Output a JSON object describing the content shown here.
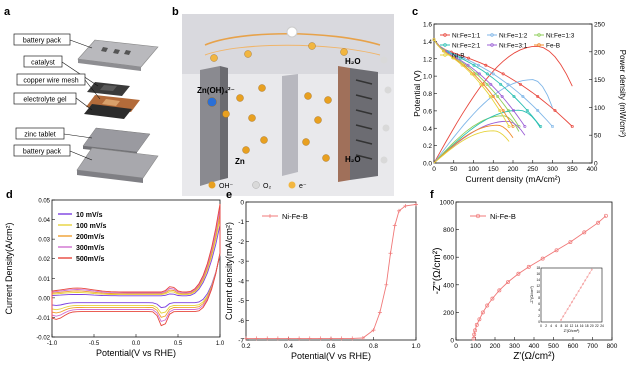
{
  "panel_letters": {
    "a": "a",
    "b": "b",
    "c": "c",
    "d": "d",
    "e": "e",
    "f": "f"
  },
  "panel_a": {
    "labels": [
      "battery pack",
      "catalyst",
      "copper wire mesh",
      "electrolyte gel",
      "zinc tablet",
      "battery pack"
    ]
  },
  "panel_b": {
    "labels": {
      "zinc_species": "Zn(OH)₄²⁻",
      "zn": "Zn",
      "h2o_top": "H₂O",
      "h2o_bottom": "H₂O"
    },
    "legend": [
      "OH⁻",
      "O₂",
      "e⁻"
    ],
    "colors": {
      "oh": "#e8a020",
      "o2": "#d9d9d9",
      "electron": "#f2b640",
      "zn_ion": "#2a6fd6"
    }
  },
  "chart_data": [
    {
      "panel": "c",
      "type": "line",
      "xlabel": "Current density (mA/cm²)",
      "ylabel": "Potential (V)",
      "y2label": "Power density (mW/cm²)",
      "xlim": [
        0,
        400
      ],
      "ylim": [
        0,
        1.6
      ],
      "y2lim": [
        0,
        250
      ],
      "xticks": [
        "0",
        "50",
        "100",
        "150",
        "200",
        "250",
        "300",
        "350",
        "400"
      ],
      "yticks": [
        "0.0",
        "0.2",
        "0.4",
        "0.6",
        "0.8",
        "1.0",
        "1.2",
        "1.4",
        "1.6"
      ],
      "y2ticks": [
        "0",
        "50",
        "100",
        "150",
        "200",
        "250"
      ],
      "series": [
        {
          "name": "Ni:Fe=1:1",
          "color": "#e8473d",
          "x_max": 350,
          "p_max": 210,
          "p_at": 260
        },
        {
          "name": "Ni:Fe=1:2",
          "color": "#7fb6e8",
          "x_max": 300,
          "p_max": 150,
          "p_at": 250
        },
        {
          "name": "Ni:Fe=1:3",
          "color": "#8fce5a",
          "x_max": 215,
          "p_max": 85,
          "p_at": 175
        },
        {
          "name": "Ni:Fe=2:1",
          "color": "#2bbfb3",
          "x_max": 270,
          "p_max": 95,
          "p_at": 215
        },
        {
          "name": "Ni:Fe=3:1",
          "color": "#9b5fd6",
          "x_max": 230,
          "p_max": 75,
          "p_at": 185
        },
        {
          "name": "Fe-B",
          "color": "#f08a2a",
          "x_max": 200,
          "p_max": 68,
          "p_at": 160
        },
        {
          "name": "Ni-B",
          "color": "#e6d33a",
          "x_max": 190,
          "p_max": 58,
          "p_at": 150
        }
      ]
    },
    {
      "panel": "d",
      "type": "line",
      "xlabel": "Potential(V vs RHE)",
      "ylabel": "Current Density(A/cm²)",
      "xlim": [
        -1.0,
        1.0
      ],
      "ylim": [
        -0.02,
        0.05
      ],
      "xticks": [
        "-1.0",
        "-0.5",
        "0.0",
        "0.5",
        "1.0"
      ],
      "yticks": [
        "-0.02",
        "-0.01",
        "0.00",
        "0.01",
        "0.02",
        "0.03",
        "0.04",
        "0.05"
      ],
      "series": [
        {
          "name": "10 mV/s",
          "color": "#7b3fe0",
          "scale": 0.35
        },
        {
          "name": "100 mV/s",
          "color": "#e6d33a",
          "scale": 0.55
        },
        {
          "name": "200mV/s",
          "color": "#f0a030",
          "scale": 0.7
        },
        {
          "name": "300mV/s",
          "color": "#d070d0",
          "scale": 0.85
        },
        {
          "name": "500mV/s",
          "color": "#e8473d",
          "scale": 1.0
        }
      ]
    },
    {
      "panel": "e",
      "type": "line",
      "xlabel": "Potential(V vs RHE)",
      "ylabel": "Current density(mA/cm²)",
      "xlim": [
        0.2,
        1.0
      ],
      "ylim": [
        -7,
        0
      ],
      "xticks": [
        "0.2",
        "0.4",
        "0.6",
        "0.8",
        "1.0"
      ],
      "yticks": [
        "-7",
        "-6",
        "-5",
        "-4",
        "-3",
        "-2",
        "-1",
        "0"
      ],
      "series": [
        {
          "name": "Ni-Fe-B",
          "color": "#f07878",
          "x": [
            0.2,
            0.25,
            0.3,
            0.35,
            0.4,
            0.45,
            0.5,
            0.55,
            0.6,
            0.65,
            0.7,
            0.75,
            0.8,
            0.83,
            0.86,
            0.88,
            0.9,
            0.92,
            0.95,
            1.0
          ],
          "y": [
            -6.92,
            -6.92,
            -6.92,
            -6.92,
            -6.92,
            -6.92,
            -6.92,
            -6.92,
            -6.92,
            -6.92,
            -6.92,
            -6.9,
            -6.5,
            -5.6,
            -4.2,
            -2.6,
            -1.2,
            -0.45,
            -0.2,
            -0.12
          ]
        }
      ]
    },
    {
      "panel": "f",
      "type": "scatter",
      "xlabel": "Z'(Ω/cm²)",
      "ylabel": "-Z''(Ω/cm²)",
      "xlim": [
        -100,
        800
      ],
      "ylim": [
        0,
        1000
      ],
      "xticks": [
        "0",
        "100",
        "200",
        "300",
        "400",
        "500",
        "600",
        "700",
        "800"
      ],
      "yticks": [
        "0",
        "200",
        "400",
        "600",
        "800",
        "1000"
      ],
      "series": [
        {
          "name": "Ni-Fe-B",
          "color": "#f07878",
          "x": [
            2,
            5,
            10,
            20,
            35,
            55,
            80,
            110,
            150,
            200,
            260,
            320,
            400,
            480,
            560,
            640,
            720,
            765
          ],
          "y": [
            10,
            40,
            70,
            110,
            150,
            200,
            250,
            300,
            360,
            420,
            480,
            530,
            590,
            650,
            710,
            780,
            850,
            900
          ]
        }
      ],
      "inset": {
        "xlabel": "Z'(Ω/cm²)",
        "ylabel": "-Z''(Ω/cm²)",
        "xticks": [
          "0",
          "2",
          "4",
          "6",
          "8",
          "10",
          "12",
          "14",
          "16",
          "18",
          "20",
          "22",
          "24"
        ],
        "yticks": [
          "0",
          "2",
          "4",
          "6",
          "8",
          "10",
          "12",
          "14",
          "16",
          "18"
        ]
      }
    }
  ]
}
